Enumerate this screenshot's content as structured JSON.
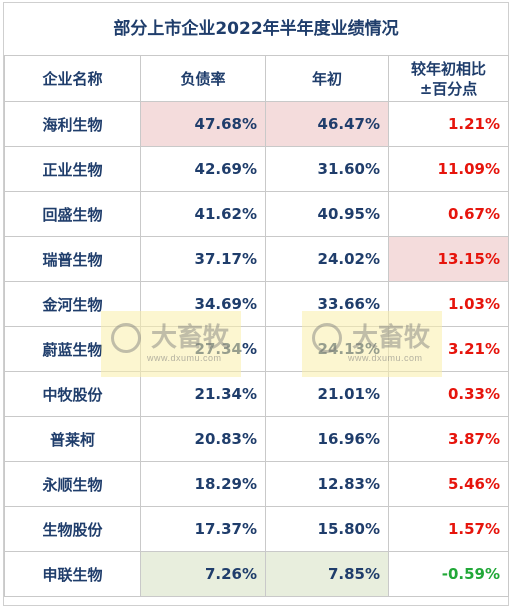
{
  "title": "部分上市企业2022年半年度业绩情况",
  "headers": {
    "name": "企业名称",
    "ratio": "负债率",
    "start": "年初",
    "change_line1": "较年初相比",
    "change_line2": "±百分点"
  },
  "rows": [
    {
      "name": "海利生物",
      "ratio": "47.68%",
      "start": "46.47%",
      "change": "1.21%"
    },
    {
      "name": "正业生物",
      "ratio": "42.69%",
      "start": "31.60%",
      "change": "11.09%"
    },
    {
      "name": "回盛生物",
      "ratio": "41.62%",
      "start": "40.95%",
      "change": "0.67%"
    },
    {
      "name": "瑞普生物",
      "ratio": "37.17%",
      "start": "24.02%",
      "change": "13.15%"
    },
    {
      "name": "金河生物",
      "ratio": "34.69%",
      "start": "33.66%",
      "change": "1.03%"
    },
    {
      "name": "蔚蓝生物",
      "ratio": "27.34%",
      "start": "24.13%",
      "change": "3.21%"
    },
    {
      "name": "中牧股份",
      "ratio": "21.34%",
      "start": "21.01%",
      "change": "0.33%"
    },
    {
      "name": "普莱柯",
      "ratio": "20.83%",
      "start": "16.96%",
      "change": "3.87%"
    },
    {
      "name": "永顺生物",
      "ratio": "18.29%",
      "start": "12.83%",
      "change": "5.46%"
    },
    {
      "name": "生物股份",
      "ratio": "17.37%",
      "start": "15.80%",
      "change": "1.57%"
    },
    {
      "name": "申联生物",
      "ratio": "7.26%",
      "start": "7.85%",
      "change": "-0.59%"
    }
  ],
  "watermark": {
    "logo": "大畜牧",
    "url": "www.dxumu.com"
  },
  "colors": {
    "header_text": "#1f3d6b",
    "positive": "#e6140c",
    "negative": "#21a838",
    "highlight_max": "#f4dcdc",
    "highlight_min": "#e8eedd"
  }
}
